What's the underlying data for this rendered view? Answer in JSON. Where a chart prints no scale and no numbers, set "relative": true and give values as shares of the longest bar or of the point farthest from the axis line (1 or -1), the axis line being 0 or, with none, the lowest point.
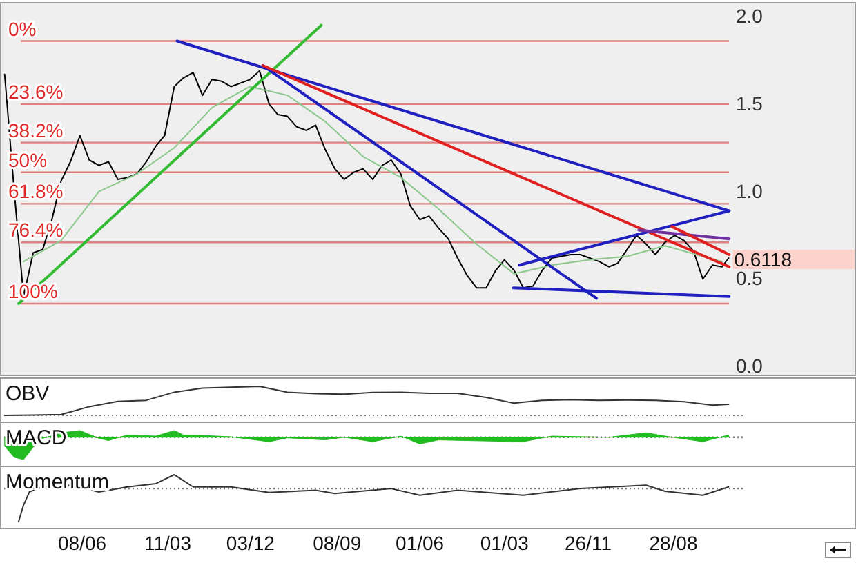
{
  "chart_data": [
    {
      "type": "line",
      "xlim": [
        "2004-09-16",
        "2012-04-08"
      ],
      "ylim": [
        -0.05,
        2.0
      ],
      "yticks": [
        {
          "value": 0,
          "label": "0.0"
        },
        0.5,
        {
          "value": 1,
          "label": "1.0"
        },
        1.5,
        {
          "value": 2,
          "label": "2.0"
        }
      ],
      "tick_labels": "y",
      "grid": false,
      "series": [
        {
          "color": "#000000",
          "x": [
            "2004-10-01",
            "2004-11-01",
            "2004-12-01",
            "2005-01-01",
            "2005-02-01",
            "2005-03-01",
            "2005-04-01",
            "2005-05-01",
            "2005-06-01",
            "2005-07-01",
            "2005-08-01",
            "2005-09-01",
            "2005-10-01",
            "2005-11-01",
            "2005-12-01",
            "2006-01-01",
            "2006-02-01",
            "2006-03-01",
            "2006-04-01",
            "2006-05-01",
            "2006-06-01",
            "2006-07-01",
            "2006-08-01",
            "2006-09-01",
            "2006-10-01",
            "2006-11-01",
            "2006-12-01",
            "2007-01-01",
            "2007-02-01",
            "2007-03-01",
            "2007-04-01",
            "2007-05-01",
            "2007-06-01",
            "2007-07-01",
            "2007-08-01",
            "2007-09-01",
            "2007-10-01",
            "2007-11-01",
            "2007-12-01",
            "2008-01-01",
            "2008-02-01",
            "2008-03-01",
            "2008-04-01",
            "2008-05-01",
            "2008-06-01",
            "2008-07-01",
            "2008-08-01",
            "2008-09-01",
            "2008-10-01",
            "2008-11-01",
            "2008-12-01",
            "2009-01-01",
            "2009-02-01",
            "2009-03-01",
            "2009-04-01",
            "2009-05-01",
            "2009-06-01",
            "2009-07-01",
            "2009-08-01",
            "2009-09-01",
            "2009-10-01",
            "2009-11-01",
            "2009-12-01",
            "2010-01-01",
            "2010-02-01",
            "2010-03-01",
            "2010-04-01",
            "2010-05-01",
            "2010-06-01",
            "2010-07-01",
            "2010-08-01",
            "2010-09-01",
            "2010-10-01",
            "2010-11-01",
            "2010-12-01",
            "2011-01-01",
            "2011-02-01",
            "2011-02-22"
          ],
          "values": [
            1.67,
            1.0,
            0.4,
            0.65,
            0.67,
            0.83,
            1.06,
            1.17,
            1.32,
            1.18,
            1.15,
            1.17,
            1.07,
            1.08,
            1.1,
            1.17,
            1.26,
            1.32,
            1.6,
            1.65,
            1.68,
            1.55,
            1.64,
            1.63,
            1.6,
            1.62,
            1.64,
            1.69,
            1.5,
            1.44,
            1.43,
            1.37,
            1.35,
            1.38,
            1.24,
            1.13,
            1.07,
            1.11,
            1.13,
            1.07,
            1.15,
            1.18,
            1.1,
            0.92,
            0.84,
            0.86,
            0.79,
            0.73,
            0.62,
            0.52,
            0.45,
            0.45,
            0.55,
            0.61,
            0.55,
            0.45,
            0.46,
            0.55,
            0.62,
            0.63,
            0.64,
            0.64,
            0.62,
            0.6,
            0.57,
            0.59,
            0.67,
            0.75,
            0.7,
            0.64,
            0.71,
            0.75,
            0.72,
            0.66,
            0.5,
            0.58,
            0.57,
            0.62
          ]
        },
        {
          "color": "#8cc88c",
          "x": [
            "2004-12-01",
            "2005-04-01",
            "2005-08-01",
            "2005-12-01",
            "2006-04-01",
            "2006-08-01",
            "2006-12-01",
            "2007-04-01",
            "2007-08-01",
            "2007-12-01",
            "2008-04-01",
            "2008-08-01",
            "2008-12-01",
            "2009-04-01",
            "2009-08-01",
            "2009-12-01",
            "2010-04-01",
            "2010-08-01",
            "2010-12-01",
            "2011-02-01"
          ],
          "values": [
            0.6,
            0.72,
            1.0,
            1.1,
            1.25,
            1.48,
            1.6,
            1.55,
            1.4,
            1.2,
            1.08,
            0.9,
            0.7,
            0.53,
            0.58,
            0.61,
            0.63,
            0.69,
            0.63,
            0.6
          ]
        },
        {
          "color": "#33bb33",
          "x": [
            "2004-11-15",
            "2007-07-19"
          ],
          "values": [
            0.36,
            1.95
          ]
        },
        {
          "color": "#2020c0",
          "x": [
            "2006-04-10",
            "2011-02-24"
          ],
          "values": [
            1.86,
            0.89
          ]
        },
        {
          "color": "#2020c0",
          "x": [
            "2007-01-12",
            "2009-12-23"
          ],
          "values": [
            1.72,
            0.39
          ]
        },
        {
          "color": "#e02020",
          "x": [
            "2007-01-12",
            "2011-02-24"
          ],
          "values": [
            1.72,
            0.57
          ]
        },
        {
          "color": "#2020c0",
          "x": [
            "2009-03-30",
            "2011-02-24"
          ],
          "values": [
            0.45,
            0.4
          ]
        },
        {
          "color": "#2020c0",
          "x": [
            "2009-04-18",
            "2011-02-24"
          ],
          "values": [
            0.58,
            0.89
          ]
        },
        {
          "color": "#7030a0",
          "x": [
            "2010-05-08",
            "2011-02-24"
          ],
          "values": [
            0.78,
            0.73
          ]
        },
        {
          "color": "#e02020",
          "x": [
            "2010-08-23",
            "2011-02-24"
          ],
          "values": [
            0.8,
            0.64
          ]
        }
      ],
      "ref_lines": [
        {
          "axis": "y",
          "value": 1.86,
          "color": "#e08080"
        },
        {
          "axis": "y",
          "value": 1.5,
          "color": "#e08080"
        },
        {
          "axis": "y",
          "value": 1.28,
          "color": "#e08080"
        },
        {
          "axis": "y",
          "value": 1.11,
          "color": "#e08080"
        },
        {
          "axis": "y",
          "value": 0.93,
          "color": "#e08080"
        },
        {
          "axis": "y",
          "value": 0.71,
          "color": "#e08080"
        },
        {
          "axis": "y",
          "value": 0.36,
          "color": "#e08080"
        }
      ],
      "annotations": [
        {
          "text": "0%",
          "y": 1.86
        },
        {
          "text": "23.6%",
          "y": 1.5
        },
        {
          "text": "38.2%",
          "y": 1.28
        },
        {
          "text": "50%",
          "y": 1.11
        },
        {
          "text": "61.8%",
          "y": 0.93
        },
        {
          "text": "76.4%",
          "y": 0.71
        },
        {
          "text": "100%",
          "y": 0.36
        },
        {
          "text": "0.6118",
          "x": "2011-02-22",
          "y": 0.6118
        }
      ]
    },
    {
      "type": "line",
      "title": "OBV",
      "relative": true,
      "tick_labels": false,
      "xlim": [
        "2004-09-16",
        "2012-04-08"
      ],
      "series": [
        {
          "color": "#333333",
          "x": [
            "2004-10-01",
            "2005-01-01",
            "2005-04-01",
            "2005-07-01",
            "2005-10-01",
            "2006-01-01",
            "2006-04-01",
            "2006-07-01",
            "2006-10-01",
            "2007-01-01",
            "2007-04-01",
            "2007-07-01",
            "2007-10-01",
            "2008-01-01",
            "2008-04-01",
            "2008-07-01",
            "2008-10-01",
            "2009-01-01",
            "2009-04-01",
            "2009-07-01",
            "2009-10-01",
            "2010-01-01",
            "2010-04-01",
            "2010-07-01",
            "2010-10-01",
            "2011-01-01",
            "2011-02-22"
          ],
          "values": [
            0,
            0.01,
            0.03,
            0.3,
            0.48,
            0.52,
            0.8,
            0.94,
            0.97,
            1,
            0.8,
            0.75,
            0.73,
            0.79,
            0.8,
            0.76,
            0.76,
            0.62,
            0.42,
            0.52,
            0.54,
            0.52,
            0.53,
            0.52,
            0.47,
            0.35,
            0.38
          ]
        }
      ]
    },
    {
      "type": "area",
      "title": "MACD",
      "relative": true,
      "tick_labels": false,
      "xlim": [
        "2004-09-16",
        "2012-04-08"
      ],
      "ref_lines": [
        {
          "axis": "y",
          "value": 0,
          "color": "#777777",
          "line_style": "dotted"
        }
      ],
      "series": [
        {
          "color": "#22bb22",
          "x": [
            "2004-10-01",
            "2004-11-01",
            "2004-12-01",
            "2005-01-01",
            "2005-02-01",
            "2005-04-01",
            "2005-06-01",
            "2005-08-01",
            "2005-09-01",
            "2005-11-01",
            "2006-02-01",
            "2006-04-01",
            "2006-05-01",
            "2006-07-01",
            "2006-10-01",
            "2007-02-01",
            "2007-04-01",
            "2007-08-01",
            "2007-10-01",
            "2008-01-01",
            "2008-04-01",
            "2008-06-01",
            "2008-08-01",
            "2008-11-01",
            "2009-05-01",
            "2009-08-01",
            "2010-02-01",
            "2010-06-01",
            "2010-08-01",
            "2010-12-01",
            "2011-02-22"
          ],
          "values": [
            -0.4,
            -0.9,
            -1,
            -0.45,
            -0.05,
            0.2,
            0.3,
            -0.05,
            -0.15,
            0.1,
            0.05,
            0.3,
            0.1,
            0.08,
            0.02,
            -0.2,
            -0.03,
            -0.12,
            0,
            -0.2,
            0.05,
            -0.3,
            -0.12,
            -0.15,
            -0.2,
            0.05,
            0,
            0.2,
            0.05,
            -0.2,
            0.1
          ]
        }
      ]
    },
    {
      "type": "line",
      "title": "Momentum",
      "relative": true,
      "tick_labels": "x",
      "xlim": [
        "2004-09-16",
        "2012-04-08"
      ],
      "ref_lines": [
        {
          "axis": "y",
          "value": 0,
          "color": "#777777",
          "line_style": "dotted"
        }
      ],
      "xticks": [
        {
          "value": "2005-06-08",
          "label": "08/06"
        },
        {
          "value": "2006-03-11",
          "label": "11/03"
        },
        {
          "value": "2006-12-03",
          "label": "03/12"
        },
        {
          "value": "2007-09-08",
          "label": "08/09"
        },
        {
          "value": "2008-06-01",
          "label": "01/06"
        },
        {
          "value": "2009-03-01",
          "label": "01/03"
        },
        {
          "value": "2009-11-26",
          "label": "26/11"
        },
        {
          "value": "2010-08-28",
          "label": "28/08"
        }
      ],
      "series": [
        {
          "color": "#333333",
          "x": [
            "2004-11-15",
            "2004-12-01",
            "2004-12-20",
            "2005-02-01",
            "2005-05-01",
            "2005-08-01",
            "2005-11-01",
            "2006-02-01",
            "2006-04-01",
            "2006-06-01",
            "2006-10-01",
            "2007-02-01",
            "2007-07-01",
            "2007-09-01",
            "2008-03-01",
            "2008-06-01",
            "2008-10-01",
            "2009-05-01",
            "2009-11-01",
            "2010-06-01",
            "2010-08-01",
            "2010-12-01",
            "2011-02-22"
          ],
          "values": [
            -1,
            -0.5,
            -0.1,
            0.05,
            0.1,
            -0.1,
            0.05,
            0.15,
            0.42,
            0.05,
            0.05,
            -0.12,
            -0.05,
            -0.15,
            0,
            -0.2,
            -0.05,
            -0.2,
            0,
            0.1,
            -0.08,
            -0.2,
            0.05
          ]
        }
      ]
    }
  ]
}
